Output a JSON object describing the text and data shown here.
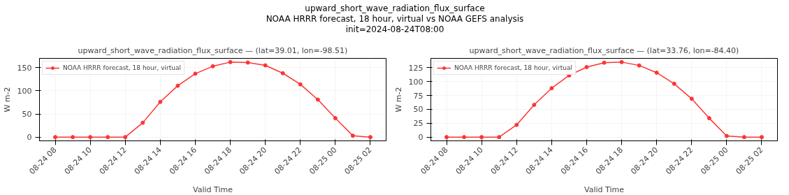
{
  "chart_data": [
    {
      "type": "line",
      "title": "upward_short_wave_radiation_flux_surface — (lat=39.01, lon=-98.51)",
      "xlabel": "Valid Time",
      "ylabel": "W m-2",
      "annotations": [
        "upward_short_wave_radiation_flux_surface\nNOAA HRRR forecast, 18 hour, virtual vs NOAA GEFS analysis\ninit=2024-08-24T08:00"
      ],
      "x": [
        "2024-08-24T08:00",
        "2024-08-24T09:00",
        "2024-08-24T10:00",
        "2024-08-24T11:00",
        "2024-08-24T12:00",
        "2024-08-24T13:00",
        "2024-08-24T14:00",
        "2024-08-24T15:00",
        "2024-08-24T16:00",
        "2024-08-24T17:00",
        "2024-08-24T18:00",
        "2024-08-24T19:00",
        "2024-08-24T20:00",
        "2024-08-24T21:00",
        "2024-08-24T22:00",
        "2024-08-24T23:00",
        "2024-08-25T00:00",
        "2024-08-25T01:00",
        "2024-08-25T02:00"
      ],
      "series": [
        {
          "name": "NOAA HRRR forecast, 18 hour, virtual",
          "color": "#ff3333",
          "values": [
            0,
            0,
            0,
            0,
            0,
            31,
            76,
            111,
            137,
            153,
            162,
            161,
            155,
            138,
            114,
            81,
            41,
            3,
            0
          ]
        }
      ],
      "xlim": [
        "2024-08-24T07:06",
        "2024-08-25T02:54"
      ],
      "xticks": [
        {
          "value": "2024-08-24T08:00",
          "label": "08-24 08"
        },
        {
          "value": "2024-08-24T10:00",
          "label": "08-24 10"
        },
        {
          "value": "2024-08-24T12:00",
          "label": "08-24 12"
        },
        {
          "value": "2024-08-24T14:00",
          "label": "08-24 14"
        },
        {
          "value": "2024-08-24T16:00",
          "label": "08-24 16"
        },
        {
          "value": "2024-08-24T18:00",
          "label": "08-24 18"
        },
        {
          "value": "2024-08-24T20:00",
          "label": "08-24 20"
        },
        {
          "value": "2024-08-24T22:00",
          "label": "08-24 22"
        },
        {
          "value": "2024-08-25T00:00",
          "label": "08-25 00"
        },
        {
          "value": "2024-08-25T02:00",
          "label": "08-25 02"
        }
      ],
      "ylim": [
        -8.1,
        170.1
      ],
      "yticks": [
        0,
        50,
        100,
        150
      ],
      "grid": true,
      "legend": "top left",
      "marker": "circle",
      "line_style": "solid"
    },
    {
      "type": "line",
      "title": "upward_short_wave_radiation_flux_surface — (lat=33.76, lon=-84.40)",
      "xlabel": "Valid Time",
      "ylabel": "W m-2",
      "x": [
        "2024-08-24T08:00",
        "2024-08-24T09:00",
        "2024-08-24T10:00",
        "2024-08-24T11:00",
        "2024-08-24T12:00",
        "2024-08-24T13:00",
        "2024-08-24T14:00",
        "2024-08-24T15:00",
        "2024-08-24T16:00",
        "2024-08-24T17:00",
        "2024-08-24T18:00",
        "2024-08-24T19:00",
        "2024-08-24T20:00",
        "2024-08-24T21:00",
        "2024-08-24T22:00",
        "2024-08-24T23:00",
        "2024-08-25T00:00",
        "2024-08-25T01:00",
        "2024-08-25T02:00"
      ],
      "series": [
        {
          "name": "NOAA HRRR forecast, 18 hour, virtual",
          "color": "#ff3333",
          "values": [
            0,
            0,
            0,
            0,
            22,
            58,
            88,
            111,
            126,
            134,
            135,
            129,
            116,
            96,
            69,
            34,
            2,
            0,
            0
          ]
        }
      ],
      "xlim": [
        "2024-08-24T07:06",
        "2024-08-25T02:54"
      ],
      "xticks": [
        {
          "value": "2024-08-24T08:00",
          "label": "08-24 08"
        },
        {
          "value": "2024-08-24T10:00",
          "label": "08-24 10"
        },
        {
          "value": "2024-08-24T12:00",
          "label": "08-24 12"
        },
        {
          "value": "2024-08-24T14:00",
          "label": "08-24 14"
        },
        {
          "value": "2024-08-24T16:00",
          "label": "08-24 16"
        },
        {
          "value": "2024-08-24T18:00",
          "label": "08-24 18"
        },
        {
          "value": "2024-08-24T20:00",
          "label": "08-24 20"
        },
        {
          "value": "2024-08-24T22:00",
          "label": "08-24 22"
        },
        {
          "value": "2024-08-25T00:00",
          "label": "08-25 00"
        },
        {
          "value": "2024-08-25T02:00",
          "label": "08-25 02"
        }
      ],
      "ylim": [
        -6.75,
        141.75
      ],
      "yticks": [
        0,
        25,
        50,
        75,
        100,
        125
      ],
      "grid": true,
      "legend": "top left",
      "marker": "circle",
      "line_style": "solid"
    }
  ]
}
